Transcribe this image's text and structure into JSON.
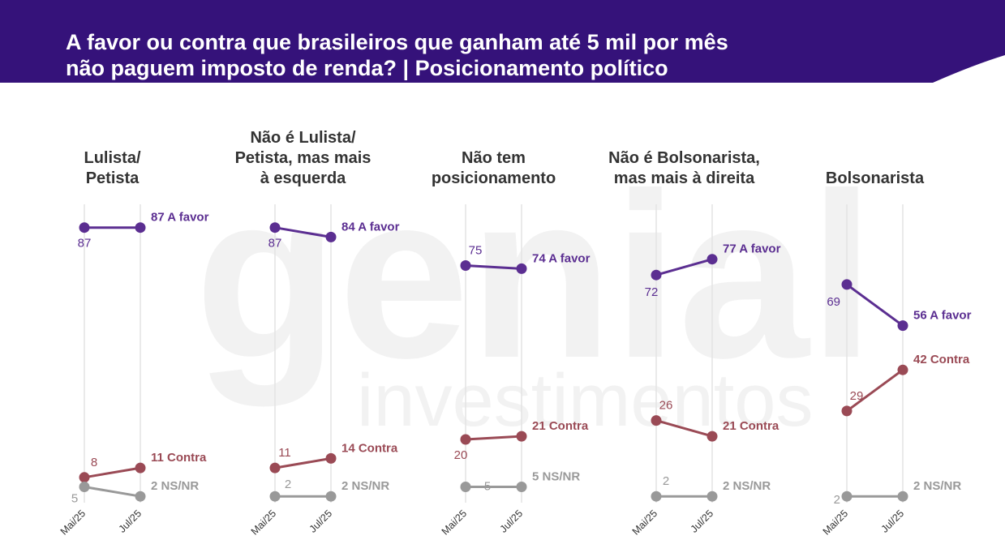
{
  "header": {
    "title_line1": "A favor ou contra que brasileiros que ganham até 5 mil por mês",
    "title_line2": "não paguem imposto de renda? | Posicionamento político",
    "bg_color": "#35127a"
  },
  "watermark": {
    "brand": "genial",
    "sub": "investimentos"
  },
  "colors": {
    "favor": "#5b2e91",
    "contra": "#9a4a55",
    "nsnr": "#999999",
    "gridline": "#e3e3e3"
  },
  "chart_data": {
    "type": "line",
    "categories": [
      "Mai/25",
      "Jul/25"
    ],
    "ylim": [
      0,
      100
    ],
    "panels": [
      {
        "title": [
          "Lulista/",
          "Petista"
        ],
        "series": [
          {
            "name": "A favor",
            "values": [
              87,
              87
            ],
            "end_label": "87 A favor"
          },
          {
            "name": "Contra",
            "values": [
              8,
              11
            ],
            "end_label": "11 Contra"
          },
          {
            "name": "NS/NR",
            "values": [
              5,
              2
            ],
            "end_label": "2 NS/NR"
          }
        ]
      },
      {
        "title": [
          "Não é Lulista/",
          "Petista, mas mais",
          "à esquerda"
        ],
        "series": [
          {
            "name": "A favor",
            "values": [
              87,
              84
            ],
            "end_label": "84 A favor"
          },
          {
            "name": "Contra",
            "values": [
              11,
              14
            ],
            "end_label": "14 Contra"
          },
          {
            "name": "NS/NR",
            "values": [
              2,
              2
            ],
            "end_label": "2 NS/NR"
          }
        ]
      },
      {
        "title": [
          "Não tem",
          "posicionamento"
        ],
        "series": [
          {
            "name": "A favor",
            "values": [
              75,
              74
            ],
            "end_label": "74 A favor"
          },
          {
            "name": "Contra",
            "values": [
              20,
              21
            ],
            "end_label": "21 Contra"
          },
          {
            "name": "NS/NR",
            "values": [
              5,
              5
            ],
            "end_label": "5 NS/NR"
          }
        ]
      },
      {
        "title": [
          "Não é Bolsonarista,",
          "mas mais à direita"
        ],
        "series": [
          {
            "name": "A favor",
            "values": [
              72,
              77
            ],
            "end_label": "77 A favor"
          },
          {
            "name": "Contra",
            "values": [
              26,
              21
            ],
            "end_label": "21 Contra"
          },
          {
            "name": "NS/NR",
            "values": [
              2,
              2
            ],
            "end_label": "2 NS/NR"
          }
        ]
      },
      {
        "title": [
          "Bolsonarista"
        ],
        "series": [
          {
            "name": "A favor",
            "values": [
              69,
              56
            ],
            "end_label": "56 A favor"
          },
          {
            "name": "Contra",
            "values": [
              29,
              42
            ],
            "end_label": "42 Contra"
          },
          {
            "name": "NS/NR",
            "values": [
              2,
              2
            ],
            "end_label": "2 NS/NR"
          }
        ]
      }
    ]
  }
}
